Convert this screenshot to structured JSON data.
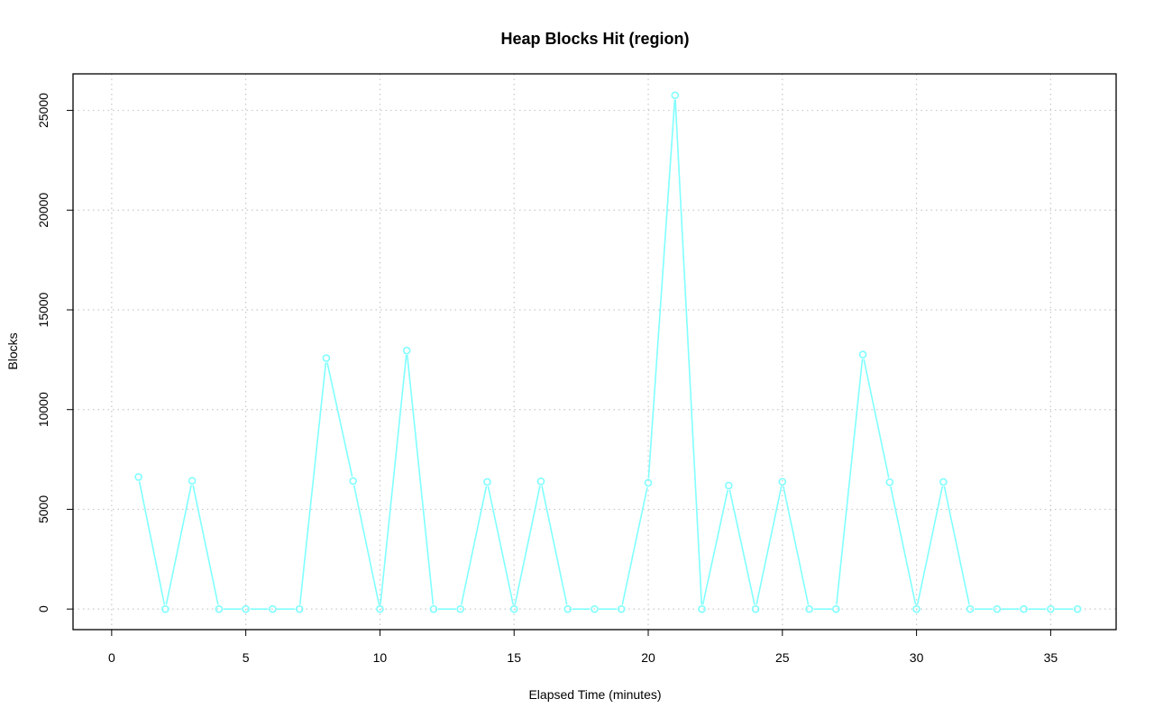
{
  "chart_data": {
    "type": "line",
    "title": "Heap Blocks Hit (region)",
    "xlabel": "Elapsed Time (minutes)",
    "ylabel": "Blocks",
    "xlim": [
      -1.44,
      37.44
    ],
    "ylim": [
      -1032,
      26832
    ],
    "x_ticks": [
      0,
      5,
      10,
      15,
      20,
      25,
      30,
      35
    ],
    "y_ticks": [
      0,
      5000,
      10000,
      15000,
      20000,
      25000
    ],
    "grid": true,
    "grid_style": "dotted",
    "series": [
      {
        "color": "#80FFFF",
        "marker": "open-circle",
        "x": [
          1,
          2,
          3,
          4,
          5,
          6,
          7,
          8,
          9,
          10,
          11,
          12,
          13,
          14,
          15,
          16,
          17,
          18,
          19,
          20,
          21,
          22,
          23,
          24,
          25,
          26,
          27,
          28,
          29,
          30,
          31,
          32,
          33,
          34,
          35,
          36
        ],
        "values": [
          6620,
          0,
          6430,
          0,
          0,
          0,
          0,
          12580,
          6420,
          0,
          12960,
          0,
          0,
          6370,
          0,
          6400,
          0,
          0,
          0,
          6330,
          25760,
          0,
          6190,
          0,
          6380,
          0,
          0,
          12760,
          6360,
          0,
          6370,
          0,
          0,
          0,
          0,
          0
        ]
      }
    ]
  }
}
